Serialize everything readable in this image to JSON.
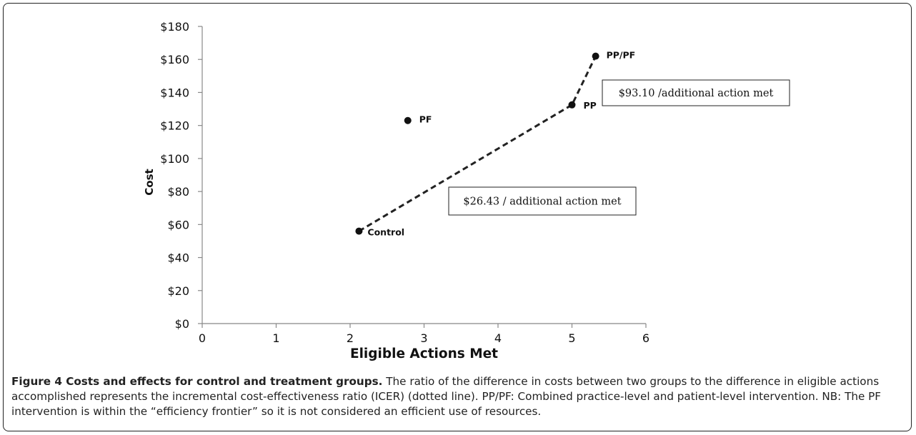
{
  "chart_data": {
    "type": "scatter",
    "xlabel": "Eligible Actions Met",
    "ylabel": "Cost",
    "xlim": [
      0,
      6
    ],
    "ylim": [
      0,
      180
    ],
    "x_ticks": [
      "0",
      "1",
      "2",
      "3",
      "4",
      "5",
      "6"
    ],
    "y_ticks": [
      "$0",
      "$20",
      "$40",
      "$60",
      "$80",
      "$100",
      "$120",
      "$140",
      "$160",
      "$180"
    ],
    "grid": false,
    "points": [
      {
        "label": "Control",
        "x": 2.12,
        "y": 56
      },
      {
        "label": "PF",
        "x": 2.78,
        "y": 123
      },
      {
        "label": "PP",
        "x": 5.0,
        "y": 132.5
      },
      {
        "label": "PP/PF",
        "x": 5.32,
        "y": 162
      }
    ],
    "frontier_line": {
      "style": "dashed",
      "through": [
        "Control",
        "PP",
        "PP/PF"
      ]
    },
    "annotations": [
      {
        "text": "$93.10 /additional action met"
      },
      {
        "text": "$26.43 / additional action met"
      }
    ]
  },
  "caption": {
    "title": "Figure 4 Costs and effects for control and treatment groups.",
    "body": " The ratio of the difference in costs between two groups to the difference in eligible actions accomplished represents the incremental cost-effectiveness ratio (ICER) (dotted line). PP/PF: Combined practice-level and patient-level intervention. NB: The PF intervention is within the “efficiency frontier” so it is not considered an efficient use of resources."
  }
}
